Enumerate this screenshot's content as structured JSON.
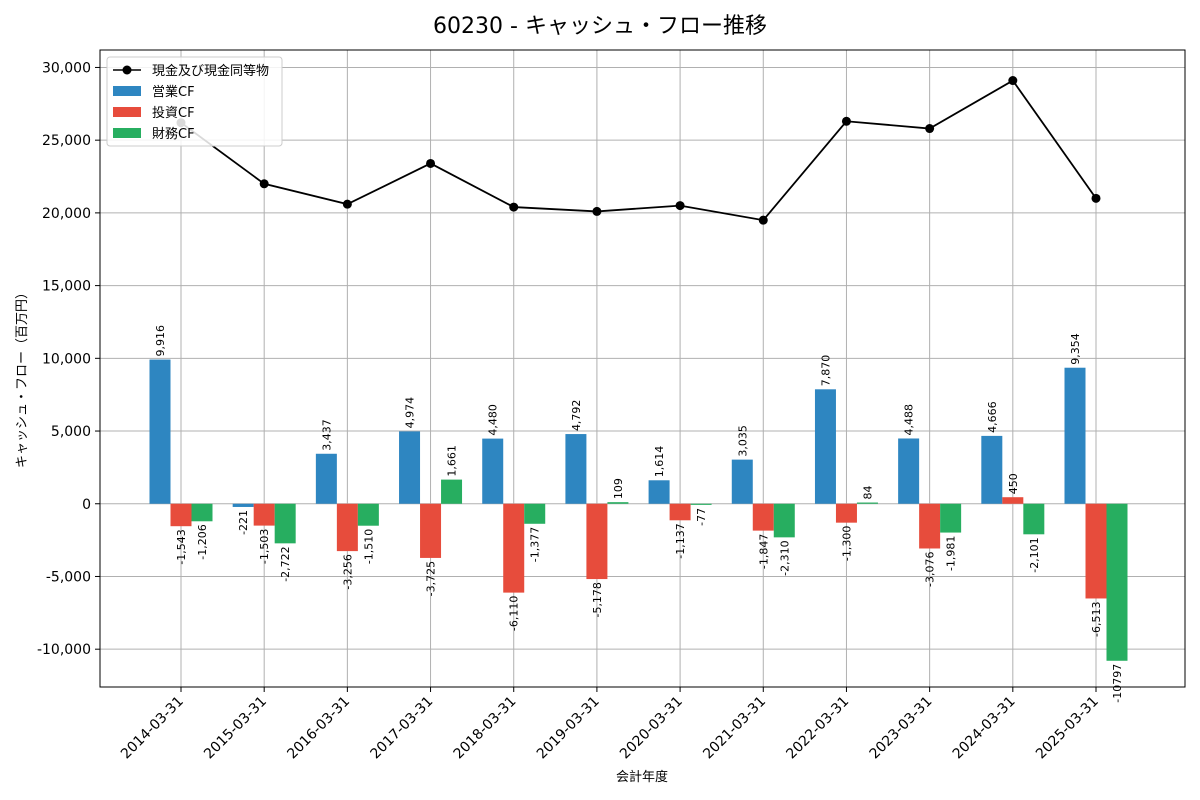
{
  "chart_data": {
    "type": "bar",
    "title": "60230 - キャッシュ・フロー推移",
    "xlabel": "会計年度",
    "ylabel": "キャッシュ・フロー（百万円）",
    "ylim": [
      -12600,
      31200
    ],
    "yticks": [
      -10000,
      -5000,
      0,
      5000,
      10000,
      15000,
      20000,
      25000,
      30000
    ],
    "ytick_labels": [
      "-10,000",
      "-5,000",
      "0",
      "5,000",
      "10,000",
      "15,000",
      "20,000",
      "25,000",
      "30,000"
    ],
    "grid": true,
    "legend_position": "top-left",
    "categories": [
      "2014-03-31",
      "2015-03-31",
      "2016-03-31",
      "2017-03-31",
      "2018-03-31",
      "2019-03-31",
      "2020-03-31",
      "2021-03-31",
      "2022-03-31",
      "2023-03-31",
      "2024-03-31",
      "2025-03-31"
    ],
    "series": [
      {
        "name": "営業CF",
        "type": "bar",
        "color": "#2e86c1",
        "values": [
          9916,
          -221,
          3437,
          4974,
          4480,
          4792,
          1614,
          3035,
          7870,
          4488,
          4666,
          9354
        ],
        "labels": [
          "9,916",
          "-221",
          "3,437",
          "4,974",
          "4,480",
          "4,792",
          "1,614",
          "3,035",
          "7,870",
          "4,488",
          "4,666",
          "9,354"
        ]
      },
      {
        "name": "投資CF",
        "type": "bar",
        "color": "#e74c3c",
        "values": [
          -1543,
          -1503,
          -3256,
          -3725,
          -6110,
          -5178,
          -1137,
          -1847,
          -1300,
          -3076,
          450,
          -6513
        ],
        "labels": [
          "-1,543",
          "-1,503",
          "-3,256",
          "-3,725",
          "-6,110",
          "-5,178",
          "-1,137",
          "-1,847",
          "-1,300",
          "-3,076",
          "450",
          "-6,513"
        ]
      },
      {
        "name": "財務CF",
        "type": "bar",
        "color": "#27ae60",
        "values": [
          -1206,
          -2722,
          -1510,
          1661,
          -1377,
          109,
          -77,
          -2310,
          84,
          -1981,
          -2101,
          -10797
        ],
        "labels": [
          "-1,206",
          "-2,722",
          "-1,510",
          "1,661",
          "-1,377",
          "109",
          "-77",
          "-2,310",
          "84",
          "-1,981",
          "-2,101",
          "-10797"
        ]
      },
      {
        "name": "現金及び現金同等物",
        "type": "line",
        "color": "#000000",
        "values": [
          26200,
          22000,
          20600,
          23400,
          20400,
          20100,
          20500,
          19500,
          26300,
          25800,
          29100,
          21000
        ]
      }
    ]
  }
}
